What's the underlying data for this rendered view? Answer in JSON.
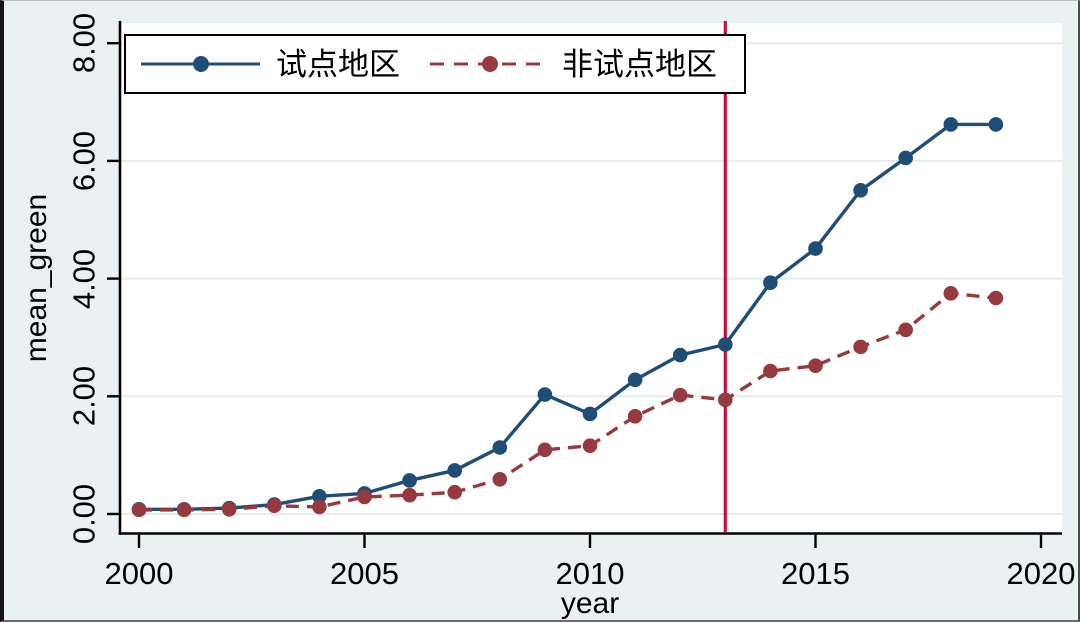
{
  "chart_data": {
    "type": "line",
    "title": "",
    "xlabel": "year",
    "ylabel": "mean_green",
    "x": [
      2000,
      2001,
      2002,
      2003,
      2004,
      2005,
      2006,
      2007,
      2008,
      2009,
      2010,
      2011,
      2012,
      2013,
      2014,
      2015,
      2016,
      2017,
      2018,
      2019
    ],
    "series": [
      {
        "name": "试点地区",
        "color": "#204d76",
        "line_style": "solid",
        "marker": "circle",
        "values": [
          0.08,
          0.08,
          0.1,
          0.16,
          0.3,
          0.35,
          0.57,
          0.74,
          1.13,
          2.03,
          1.7,
          2.28,
          2.7,
          2.88,
          3.93,
          4.51,
          5.5,
          6.05,
          6.62,
          6.62
        ]
      },
      {
        "name": "非试点地区",
        "color": "#963a40",
        "line_style": "dashed",
        "marker": "circle",
        "values": [
          0.07,
          0.07,
          0.08,
          0.14,
          0.12,
          0.29,
          0.32,
          0.37,
          0.59,
          1.09,
          1.16,
          1.66,
          2.02,
          1.94,
          2.43,
          2.52,
          2.84,
          3.13,
          3.75,
          3.67
        ]
      }
    ],
    "vline": {
      "x": 2013,
      "color": "#c8103a"
    },
    "x_ticks": {
      "values": [
        2000,
        2005,
        2010,
        2015,
        2020
      ],
      "labels": [
        "2000",
        "2005",
        "2010",
        "2015",
        "2020"
      ]
    },
    "y_ticks": {
      "values": [
        0,
        2,
        4,
        6,
        8
      ],
      "labels": [
        "0.00",
        "2.00",
        "4.00",
        "6.00",
        "8.00"
      ]
    },
    "xlim": [
      1999.55,
      2020.45
    ],
    "ylim": [
      -0.35,
      8.35
    ],
    "grid": "horizontal",
    "legend_position": "top-left-inside",
    "colors": {
      "background": "#eaf1f3",
      "plot_background": "#ffffff",
      "gridline": "#e3edf0",
      "axis": "#000000"
    }
  }
}
